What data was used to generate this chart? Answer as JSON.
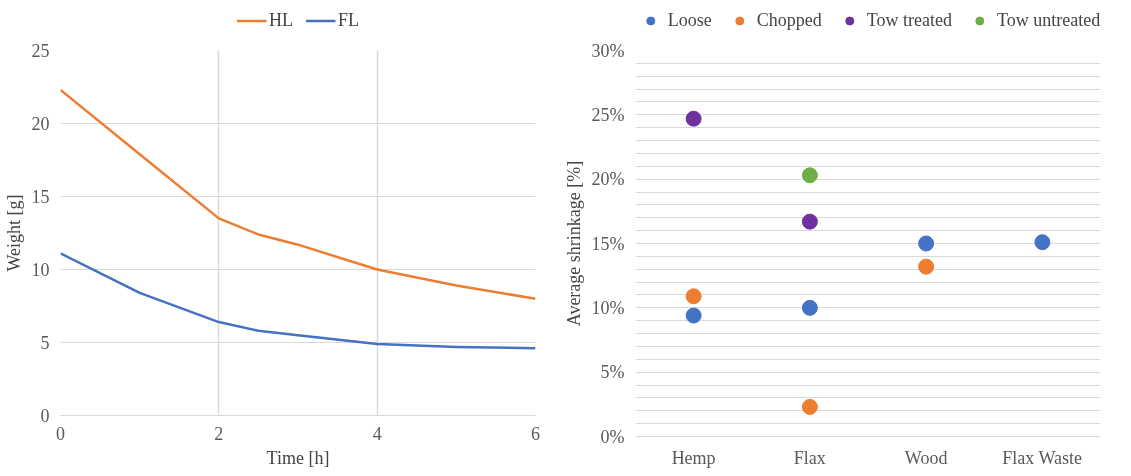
{
  "chart_data": [
    {
      "type": "line",
      "xlabel": "Time [h]",
      "ylabel": "Weight [g]",
      "xlim": [
        0,
        6
      ],
      "ylim": [
        0,
        25
      ],
      "xticks": [
        0,
        2,
        4,
        6
      ],
      "yticks": [
        0,
        5,
        10,
        15,
        20,
        25
      ],
      "grid": true,
      "legend": "top",
      "line_style": "solid",
      "series": [
        {
          "name": "HL",
          "color": "#ed7d31",
          "x": [
            0,
            1,
            2,
            2.5,
            3,
            4,
            5,
            6
          ],
          "values": [
            22.3,
            17.9,
            13.5,
            12.4,
            11.7,
            10.0,
            8.9,
            8.0
          ]
        },
        {
          "name": "FL",
          "color": "#4472c4",
          "x": [
            0,
            1,
            2,
            2.5,
            3,
            4,
            5,
            6
          ],
          "values": [
            11.1,
            8.4,
            6.4,
            5.8,
            5.5,
            4.9,
            4.7,
            4.6
          ]
        }
      ]
    },
    {
      "type": "scatter",
      "ylabel": "Average shrinkage [%]",
      "categories": [
        "Hemp",
        "Flax",
        "Wood",
        "Flax Waste"
      ],
      "ylim": [
        0,
        30
      ],
      "marker": "circle",
      "grid": "y",
      "legend": "top",
      "yticks": [
        {
          "value": 0,
          "label": "0%"
        },
        {
          "value": 1,
          "label": null
        },
        {
          "value": 2,
          "label": null
        },
        {
          "value": 3,
          "label": null
        },
        {
          "value": 4,
          "label": null
        },
        {
          "value": 5,
          "label": "5%"
        },
        {
          "value": 6,
          "label": null
        },
        {
          "value": 7,
          "label": null
        },
        {
          "value": 8,
          "label": null
        },
        {
          "value": 9,
          "label": null
        },
        {
          "value": 10,
          "label": "10%"
        },
        {
          "value": 11,
          "label": null
        },
        {
          "value": 12,
          "label": null
        },
        {
          "value": 13,
          "label": null
        },
        {
          "value": 14,
          "label": null
        },
        {
          "value": 15,
          "label": "15%"
        },
        {
          "value": 16,
          "label": null
        },
        {
          "value": 17,
          "label": null
        },
        {
          "value": 18,
          "label": null
        },
        {
          "value": 19,
          "label": null
        },
        {
          "value": 20,
          "label": "20%"
        },
        {
          "value": 21,
          "label": null
        },
        {
          "value": 22,
          "label": null
        },
        {
          "value": 23,
          "label": null
        },
        {
          "value": 24,
          "label": null
        },
        {
          "value": 25,
          "label": "25%"
        },
        {
          "value": 26,
          "label": null
        },
        {
          "value": 27,
          "label": null
        },
        {
          "value": 28,
          "label": null
        },
        {
          "value": 29,
          "label": null
        },
        {
          "value": 30,
          "label": "30%"
        }
      ],
      "series": [
        {
          "name": "Loose",
          "color": "#4472c4",
          "values": [
            9.4,
            10.0,
            15.0,
            15.1
          ]
        },
        {
          "name": "Chopped",
          "color": "#ed7d31",
          "values": [
            10.9,
            2.3,
            13.2,
            null
          ]
        },
        {
          "name": "Tow treated",
          "color": "#7030a0",
          "values": [
            24.7,
            16.7,
            null,
            null
          ]
        },
        {
          "name": "Tow untreated",
          "color": "#70ad47",
          "values": [
            null,
            20.3,
            null,
            null
          ]
        }
      ]
    }
  ]
}
